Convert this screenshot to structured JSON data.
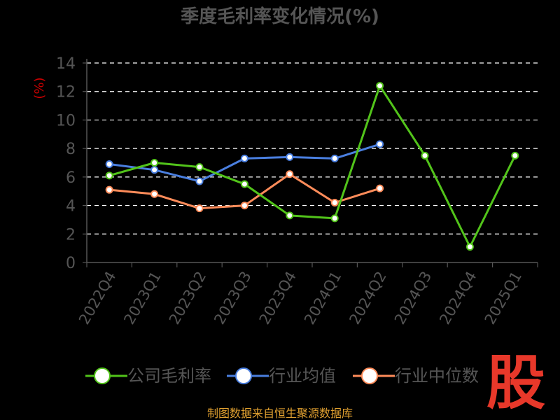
{
  "chart_data": {
    "type": "line",
    "title": "季度毛利率变化情况(%)",
    "ylabel": "(%)",
    "ylim": [
      0,
      14
    ],
    "yticks": [
      0,
      2,
      4,
      6,
      8,
      10,
      12,
      14
    ],
    "grid": true,
    "legend_position": "bottom",
    "categories": [
      "2022Q4",
      "2023Q1",
      "2023Q2",
      "2023Q3",
      "2023Q4",
      "2024Q1",
      "2024Q2",
      "2024Q3",
      "2024Q4",
      "2025Q1"
    ],
    "series": [
      {
        "name": "公司毛利率",
        "color": "#52c41a",
        "values": [
          6.1,
          7.0,
          6.7,
          5.5,
          3.3,
          3.1,
          12.4,
          7.5,
          1.1,
          7.5
        ]
      },
      {
        "name": "行业均值",
        "color": "#4a7fe0",
        "values": [
          6.9,
          6.5,
          5.7,
          7.3,
          7.4,
          7.3,
          8.3,
          null,
          null,
          null
        ]
      },
      {
        "name": "行业中位数",
        "color": "#ff8c5a",
        "values": [
          5.1,
          4.8,
          3.8,
          4.0,
          6.2,
          4.2,
          5.2,
          null,
          null,
          null
        ]
      }
    ]
  },
  "source": "制图数据来自恒生聚源数据库",
  "logo_text": "股",
  "colors": {
    "background": "#000000",
    "title": "#555555",
    "axis": "#555555",
    "grid": "#ffffff",
    "ylabel": "#cc0000",
    "source": "#e0a030",
    "logo": "#e8382a"
  }
}
